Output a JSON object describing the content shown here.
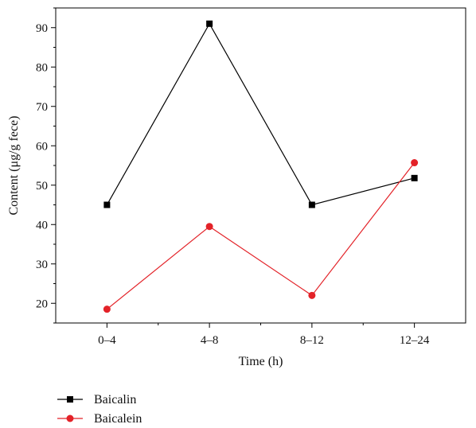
{
  "chart_data": {
    "type": "line",
    "categories": [
      "0–4",
      "4–8",
      "8–12",
      "12–24"
    ],
    "series": [
      {
        "name": "Baicalin",
        "values": [
          45,
          91,
          45,
          51.8
        ],
        "color": "#000000",
        "marker": "square"
      },
      {
        "name": "Baicalein",
        "values": [
          18.5,
          39.5,
          22,
          55.7
        ],
        "color": "#e32228",
        "marker": "circle"
      }
    ],
    "xlabel": "Time (h)",
    "ylabel": "Content (μg/g fece)",
    "ylim": [
      15,
      95
    ],
    "yticks": [
      20,
      30,
      40,
      50,
      60,
      70,
      80,
      90
    ],
    "grid": false,
    "legend_position": "bottom-left"
  }
}
